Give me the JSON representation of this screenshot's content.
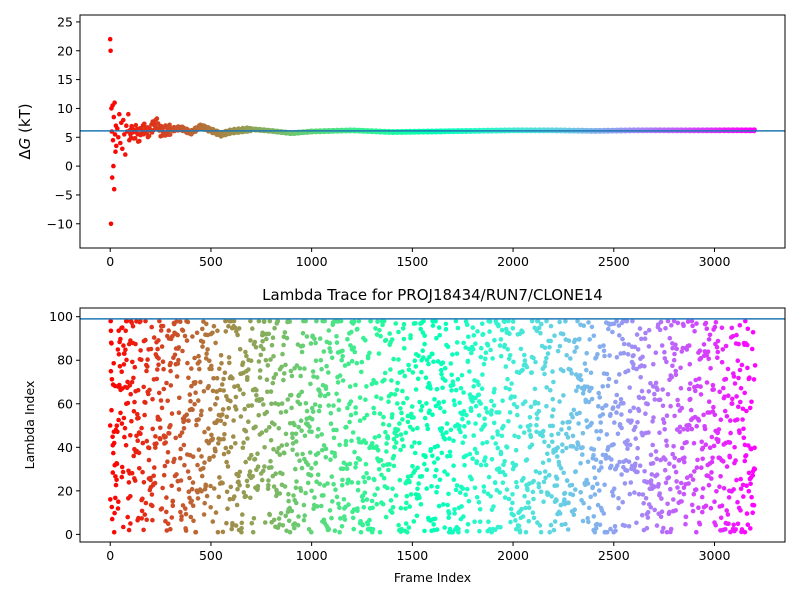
{
  "chart_data": [
    {
      "type": "scatter",
      "title": "",
      "xlabel": "",
      "ylabel": "ΔG (kT)",
      "ylabel_parts": {
        "delta": "Δ",
        "symbol": "G",
        "unit": " (kT)"
      },
      "xlim": [
        -150,
        3350
      ],
      "ylim": [
        -14.2,
        26.2
      ],
      "xticks": [
        0,
        500,
        1000,
        1500,
        2000,
        2500,
        3000
      ],
      "yticks": [
        -10,
        -5,
        0,
        5,
        10,
        15,
        20,
        25
      ],
      "hline": 6.1,
      "hline_color": "#1f77b4",
      "colormap": "rainbow",
      "frame_range": [
        0,
        3200
      ],
      "grid": false,
      "series": [
        {
          "x": [
            0,
            2,
            4,
            6,
            8,
            10,
            12,
            14,
            16,
            18,
            20,
            22,
            24,
            26,
            28,
            30,
            35,
            40,
            45,
            50,
            55,
            60,
            65,
            70,
            75,
            80,
            85,
            90,
            95,
            100,
            110,
            120,
            130,
            140,
            150,
            170,
            190,
            210,
            230,
            250,
            300,
            350,
            400,
            450,
            500,
            550,
            600,
            700,
            800,
            900,
            1000,
            1200,
            1400,
            1600,
            1800,
            2000,
            2200,
            2400,
            2600,
            2800,
            3000,
            3200
          ],
          "y": [
            22.0,
            20.0,
            -10.0,
            10.0,
            6.0,
            -2.0,
            10.5,
            4.5,
            0.0,
            8.5,
            -4.0,
            11.0,
            5.5,
            2.5,
            7.0,
            3.5,
            6.5,
            5.0,
            9.0,
            4.0,
            7.5,
            3.0,
            8.0,
            5.5,
            2.0,
            7.0,
            6.0,
            9.0,
            4.5,
            5.5,
            6.5,
            5.0,
            6.8,
            4.5,
            6.0,
            6.5,
            5.8,
            6.8,
            7.5,
            6.0,
            6.3,
            6.6,
            5.8,
            6.9,
            6.2,
            5.5,
            6.0,
            6.4,
            6.1,
            5.7,
            6.0,
            6.2,
            5.9,
            6.0,
            6.1,
            6.2,
            6.2,
            6.1,
            6.2,
            6.2,
            6.2,
            6.2
          ]
        }
      ]
    },
    {
      "type": "scatter",
      "title": "Lambda Trace for PROJ18434/RUN7/CLONE14",
      "xlabel": "Frame Index",
      "ylabel": "Lambda Index",
      "xlim": [
        -150,
        3350
      ],
      "ylim": [
        -3.5,
        104
      ],
      "xticks": [
        0,
        500,
        1000,
        1500,
        2000,
        2500,
        3000
      ],
      "yticks": [
        0,
        20,
        40,
        60,
        80,
        100
      ],
      "hline": 99,
      "hline_color": "#1f77b4",
      "colormap": "rainbow",
      "frame_range": [
        0,
        3200
      ],
      "grid": false,
      "point_count": 2400,
      "series": [
        {
          "x": [
            0,
            5,
            10,
            20,
            40,
            60,
            80,
            100,
            150,
            200,
            300,
            400,
            500,
            600,
            800,
            1000,
            1200,
            1400,
            1600,
            1800,
            2000,
            2200,
            2400,
            2600,
            2800,
            3000,
            3100,
            3150,
            3200
          ],
          "y": [
            50,
            88,
            7,
            42,
            15,
            95,
            60,
            5,
            98,
            25,
            75,
            8,
            92,
            40,
            60,
            20,
            85,
            10,
            55,
            95,
            30,
            70,
            2,
            48,
            80,
            15,
            40,
            65,
            30
          ]
        }
      ]
    }
  ]
}
